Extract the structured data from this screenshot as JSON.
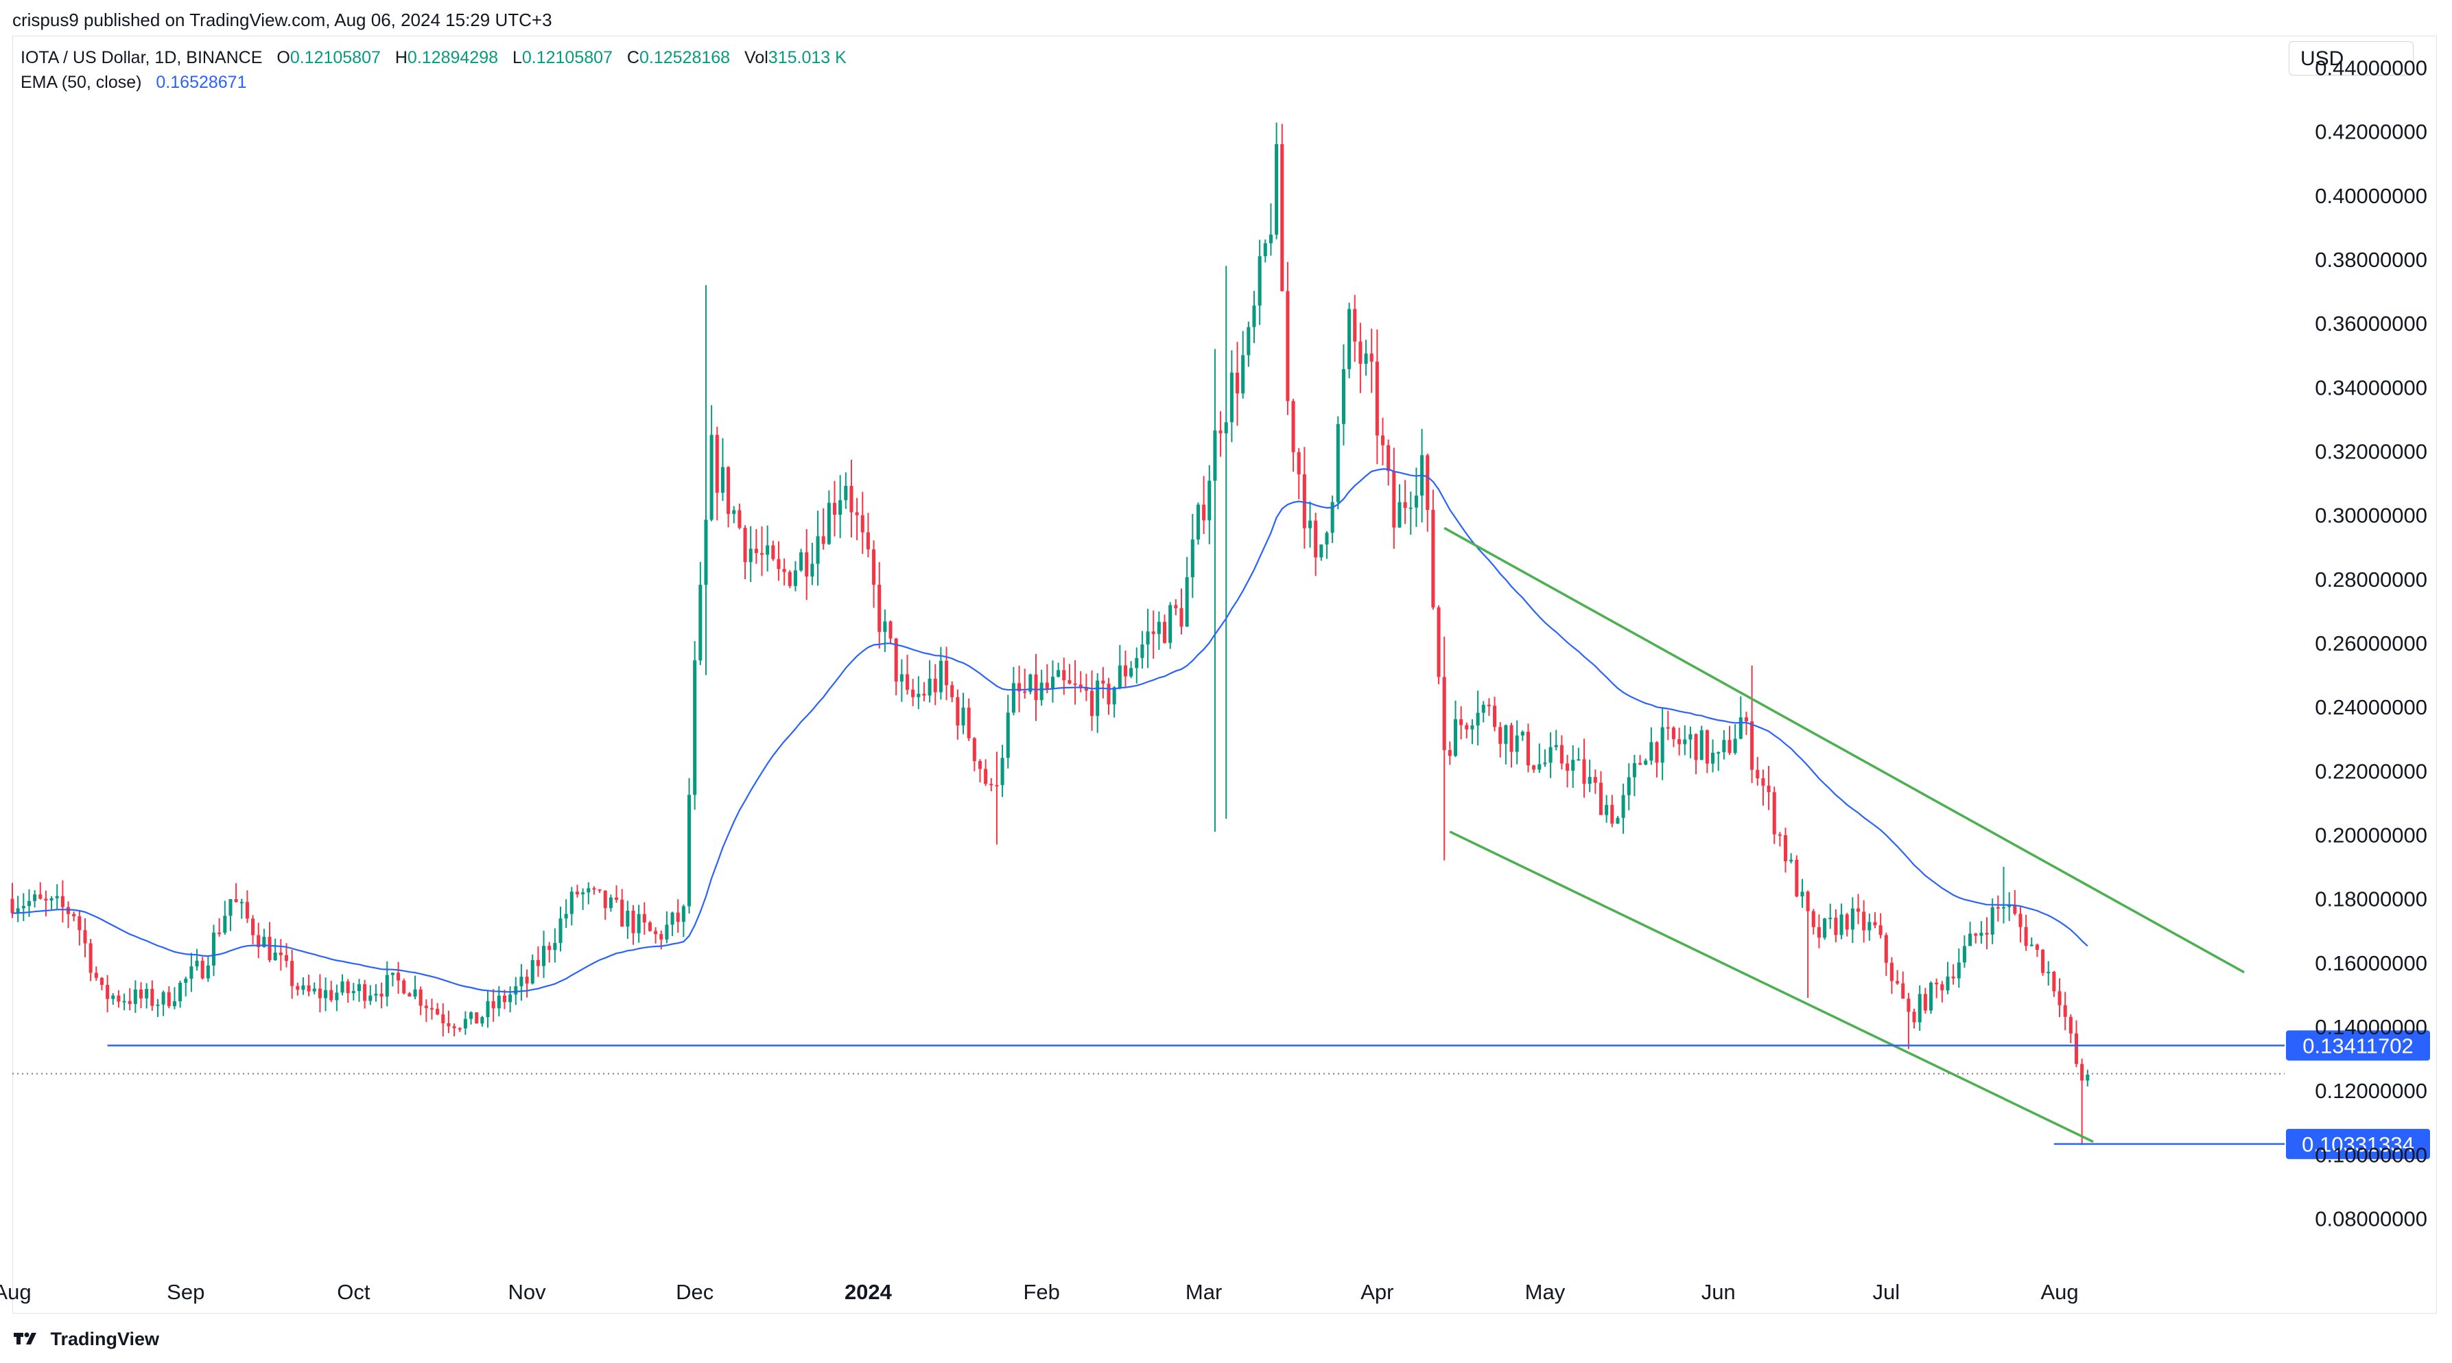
{
  "header": {
    "published": "crispus9 published on TradingView.com, Aug 06, 2024 15:29 UTC+3",
    "symbol": "IOTA / US Dollar, 1D, BINANCE",
    "ohlc": [
      {
        "label": "O",
        "value": "0.12105807"
      },
      {
        "label": "H",
        "value": "0.12894298"
      },
      {
        "label": "L",
        "value": "0.12105807"
      },
      {
        "label": "C",
        "value": "0.12528168"
      },
      {
        "label": "Vol",
        "value": "315.013 K"
      }
    ],
    "ema_label": "EMA (50, close)",
    "ema_value": "0.16528671"
  },
  "currency": "USD",
  "footer": {
    "brand": "TradingView"
  },
  "colors": {
    "up": "#089981",
    "down": "#f23645",
    "ema": "#2962ff",
    "channel": "#4caf50",
    "level": "#2962ff"
  },
  "chart_data": {
    "type": "candlestick",
    "ylim": [
      0.07,
      0.45
    ],
    "y_ticks": [
      "0.44000000",
      "0.42000000",
      "0.40000000",
      "0.38000000",
      "0.36000000",
      "0.34000000",
      "0.32000000",
      "0.30000000",
      "0.28000000",
      "0.26000000",
      "0.24000000",
      "0.22000000",
      "0.20000000",
      "0.18000000",
      "0.16000000",
      "0.14000000",
      "0.12000000",
      "0.10000000",
      "0.08000000"
    ],
    "y_tick_values": [
      0.44,
      0.42,
      0.4,
      0.38,
      0.36,
      0.34,
      0.32,
      0.3,
      0.28,
      0.26,
      0.24,
      0.22,
      0.2,
      0.18,
      0.16,
      0.14,
      0.12,
      0.1,
      0.08
    ],
    "x_ticks": [
      {
        "label": "Aug",
        "date": "2023-08-01",
        "bold": false
      },
      {
        "label": "Sep",
        "date": "2023-09-01",
        "bold": false
      },
      {
        "label": "Oct",
        "date": "2023-10-01",
        "bold": false
      },
      {
        "label": "Nov",
        "date": "2023-11-01",
        "bold": false
      },
      {
        "label": "Dec",
        "date": "2023-12-01",
        "bold": false
      },
      {
        "label": "2024",
        "date": "2024-01-01",
        "bold": true
      },
      {
        "label": "Feb",
        "date": "2024-02-01",
        "bold": false
      },
      {
        "label": "Mar",
        "date": "2024-03-01",
        "bold": false
      },
      {
        "label": "Apr",
        "date": "2024-04-01",
        "bold": false
      },
      {
        "label": "May",
        "date": "2024-05-01",
        "bold": false
      },
      {
        "label": "Jun",
        "date": "2024-06-01",
        "bold": false
      },
      {
        "label": "Jul",
        "date": "2024-07-01",
        "bold": false
      },
      {
        "label": "Aug",
        "date": "2024-08-01",
        "bold": false
      }
    ],
    "x_range": [
      "2023-08-01",
      "2024-09-09"
    ],
    "close_anchors": [
      [
        "2023-08-01",
        0.18
      ],
      [
        "2023-08-12",
        0.176
      ],
      [
        "2023-08-17",
        0.15
      ],
      [
        "2023-08-28",
        0.148
      ],
      [
        "2023-09-04",
        0.159
      ],
      [
        "2023-09-09",
        0.18
      ],
      [
        "2023-09-13",
        0.171
      ],
      [
        "2023-09-22",
        0.15
      ],
      [
        "2023-10-01",
        0.151
      ],
      [
        "2023-10-10",
        0.154
      ],
      [
        "2023-10-17",
        0.143
      ],
      [
        "2023-10-22",
        0.141
      ],
      [
        "2023-11-01",
        0.154
      ],
      [
        "2023-11-10",
        0.182
      ],
      [
        "2023-11-15",
        0.178
      ],
      [
        "2023-11-24",
        0.168
      ],
      [
        "2023-11-29",
        0.175
      ],
      [
        "2023-12-01",
        0.25
      ],
      [
        "2023-12-04",
        0.318
      ],
      [
        "2023-12-10",
        0.292
      ],
      [
        "2023-12-16",
        0.28
      ],
      [
        "2023-12-21",
        0.288
      ],
      [
        "2023-12-28",
        0.312
      ],
      [
        "2024-01-03",
        0.268
      ],
      [
        "2024-01-08",
        0.241
      ],
      [
        "2024-01-14",
        0.249
      ],
      [
        "2024-01-19",
        0.232
      ],
      [
        "2024-01-23",
        0.212
      ],
      [
        "2024-01-27",
        0.243
      ],
      [
        "2024-02-04",
        0.246
      ],
      [
        "2024-02-12",
        0.242
      ],
      [
        "2024-02-20",
        0.262
      ],
      [
        "2024-02-26",
        0.27
      ],
      [
        "2024-03-04",
        0.332
      ],
      [
        "2024-03-09",
        0.352
      ],
      [
        "2024-03-12",
        0.382
      ],
      [
        "2024-03-14",
        0.406
      ],
      [
        "2024-03-16",
        0.335
      ],
      [
        "2024-03-21",
        0.282
      ],
      [
        "2024-03-24",
        0.31
      ],
      [
        "2024-03-27",
        0.358
      ],
      [
        "2024-03-31",
        0.34
      ],
      [
        "2024-04-04",
        0.297
      ],
      [
        "2024-04-09",
        0.318
      ],
      [
        "2024-04-13",
        0.228
      ],
      [
        "2024-04-19",
        0.242
      ],
      [
        "2024-04-22",
        0.236
      ],
      [
        "2024-04-30",
        0.222
      ],
      [
        "2024-05-05",
        0.224
      ],
      [
        "2024-05-14",
        0.205
      ],
      [
        "2024-05-19",
        0.228
      ],
      [
        "2024-05-28",
        0.229
      ],
      [
        "2024-06-01",
        0.222
      ],
      [
        "2024-06-05",
        0.236
      ],
      [
        "2024-06-10",
        0.21
      ],
      [
        "2024-06-18",
        0.168
      ],
      [
        "2024-06-24",
        0.174
      ],
      [
        "2024-06-29",
        0.17
      ],
      [
        "2024-07-05",
        0.143
      ],
      [
        "2024-07-11",
        0.154
      ],
      [
        "2024-07-19",
        0.173
      ],
      [
        "2024-07-22",
        0.179
      ],
      [
        "2024-07-29",
        0.16
      ],
      [
        "2024-08-01",
        0.15
      ],
      [
        "2024-08-05",
        0.121
      ],
      [
        "2024-08-06",
        0.125
      ]
    ],
    "wicks": [
      {
        "date": "2023-12-03",
        "high": 0.372,
        "low": 0.25
      },
      {
        "date": "2024-01-24",
        "high": 0.226,
        "low": 0.197
      },
      {
        "date": "2024-03-03",
        "high": 0.352,
        "low": 0.201
      },
      {
        "date": "2024-03-05",
        "high": 0.378,
        "low": 0.205
      },
      {
        "date": "2024-03-14",
        "high": 0.421,
        "low": 0.395
      },
      {
        "date": "2024-04-13",
        "high": 0.262,
        "low": 0.192
      },
      {
        "date": "2024-06-07",
        "high": 0.253,
        "low": 0.226
      },
      {
        "date": "2024-06-17",
        "high": 0.175,
        "low": 0.149
      },
      {
        "date": "2024-07-05",
        "high": 0.15,
        "low": 0.133
      },
      {
        "date": "2024-07-22",
        "high": 0.19,
        "low": 0.176
      },
      {
        "date": "2024-08-05",
        "high": 0.13,
        "low": 0.103
      }
    ],
    "ema_period": 50,
    "horizontal_levels": [
      {
        "price": 0.13411702,
        "label": "0.13411702",
        "from": "2023-08-18"
      },
      {
        "price": 0.10331334,
        "label": "0.10331334",
        "from": "2024-07-31"
      }
    ],
    "channel_lines": [
      {
        "from": [
          "2024-04-13",
          0.296
        ],
        "to": [
          "2024-09-03",
          0.157
        ]
      },
      {
        "from": [
          "2024-04-14",
          0.201
        ],
        "to": [
          "2024-08-07",
          0.104
        ]
      }
    ],
    "last_price": 0.12528168
  }
}
